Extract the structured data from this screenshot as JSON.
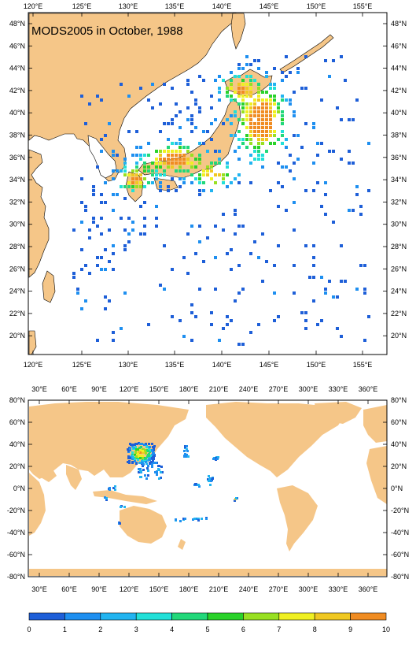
{
  "top_map": {
    "title": "MODS2005 in October, 1988",
    "lon_labels": [
      "120°E",
      "125°E",
      "130°E",
      "135°E",
      "140°E",
      "145°E",
      "150°E",
      "155°E"
    ],
    "lat_labels": [
      "48°N",
      "46°N",
      "44°N",
      "42°N",
      "40°N",
      "38°N",
      "36°N",
      "34°N",
      "32°N",
      "30°N",
      "28°N",
      "26°N",
      "24°N",
      "22°N",
      "20°N"
    ]
  },
  "bottom_map": {
    "lon_labels": [
      "30°E",
      "60°E",
      "90°E",
      "120°E",
      "150°E",
      "180°E",
      "210°E",
      "240°E",
      "270°E",
      "300°E",
      "330°E",
      "360°E"
    ],
    "lat_labels": [
      "80°N",
      "60°N",
      "40°N",
      "20°N",
      "0°N",
      "-20°N",
      "-40°N",
      "-60°N",
      "-80°N"
    ]
  },
  "colorbar": {
    "labels": [
      "0",
      "1",
      "2",
      "3",
      "4",
      "5",
      "6",
      "7",
      "8",
      "9",
      "10"
    ],
    "colors": [
      "#1e5fd8",
      "#1e8ff0",
      "#22b4f0",
      "#22e0d8",
      "#22d87a",
      "#2ad22a",
      "#98e022",
      "#f0f022",
      "#f0c822",
      "#f08c22",
      "#e83c1e"
    ]
  },
  "colors": {
    "land": "#f5c688",
    "ocean": "#ffffff"
  }
}
